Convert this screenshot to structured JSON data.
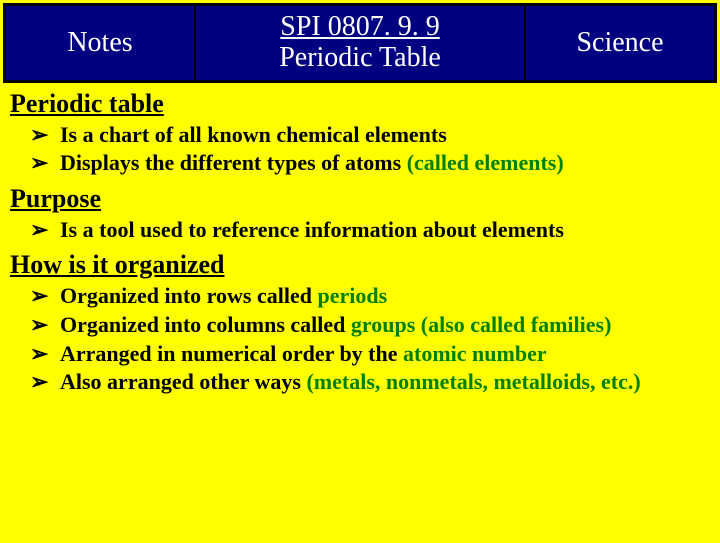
{
  "colors": {
    "background": "#ffff00",
    "header_bg": "#000080",
    "header_text": "#ffffff",
    "body_text": "#000000",
    "highlight": "#008000",
    "border": "#000000"
  },
  "typography": {
    "header_fontsize": 28,
    "heading_fontsize": 26,
    "bullet_fontsize": 22,
    "font_family": "Times New Roman",
    "font_weight": "bold"
  },
  "header": {
    "left": "Notes",
    "mid_line1": "SPI 0807. 9. 9 ",
    "mid_line2": "Periodic Table",
    "right": "Science"
  },
  "sections": [
    {
      "heading": "Periodic table",
      "bullets": [
        {
          "pre": "Is a chart of all known chemical elements",
          "hl": "",
          "post": ""
        },
        {
          "pre": "Displays the different types of atoms ",
          "hl": "(called elements)",
          "post": ""
        }
      ]
    },
    {
      "heading": "Purpose",
      "bullets": [
        {
          "pre": "Is a tool used to reference information about elements",
          "hl": "",
          "post": ""
        }
      ]
    },
    {
      "heading": "How is it organized",
      "bullets": [
        {
          "pre": "Organized into rows called ",
          "hl": "periods",
          "post": ""
        },
        {
          "pre": "Organized into columns called ",
          "hl": "groups (also called families)",
          "post": ""
        },
        {
          "pre": "Arranged in numerical order by the ",
          "hl": "atomic number",
          "post": ""
        },
        {
          "pre": "Also arranged other ways ",
          "hl": "(metals, nonmetals, metalloids, etc.)",
          "post": ""
        }
      ]
    }
  ]
}
